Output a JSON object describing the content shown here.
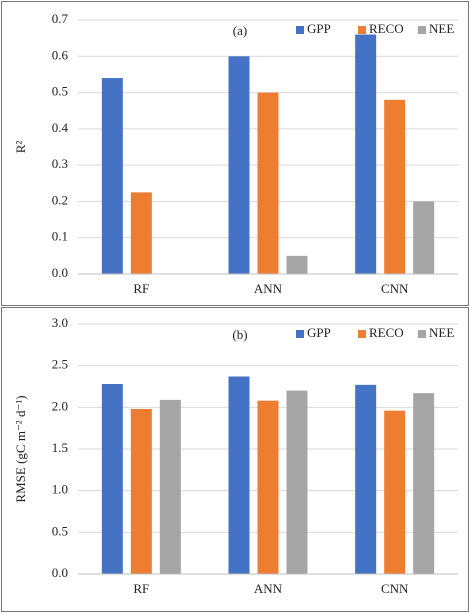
{
  "chart_data": [
    {
      "type": "bar",
      "title": "(a)",
      "y_label": "R²",
      "categories": [
        "RF",
        "ANN",
        "CNN"
      ],
      "series": [
        {
          "name": "GPP",
          "color": "#4472c4",
          "values": [
            0.54,
            0.6,
            0.66
          ]
        },
        {
          "name": "RECO",
          "color": "#ed7d31",
          "values": [
            0.225,
            0.5,
            0.48
          ]
        },
        {
          "name": "NEE",
          "color": "#a5a5a5",
          "values": [
            0,
            0.05,
            0.2
          ]
        }
      ],
      "ylim": [
        0,
        0.7
      ],
      "yticks": [
        {
          "value": 0,
          "label": "0.0"
        },
        0.1,
        0.2,
        0.3,
        0.4,
        0.5,
        0.6,
        0.7
      ],
      "grid": true,
      "legend": "upper right"
    },
    {
      "type": "bar",
      "title": "(b)",
      "y_label": "RMSE (gC m⁻² d⁻¹)",
      "categories": [
        "RF",
        "ANN",
        "CNN"
      ],
      "series": [
        {
          "name": "GPP",
          "color": "#4472c4",
          "values": [
            2.28,
            2.37,
            2.27
          ]
        },
        {
          "name": "RECO",
          "color": "#ed7d31",
          "values": [
            1.98,
            2.08,
            1.96
          ]
        },
        {
          "name": "NEE",
          "color": "#a5a5a5",
          "values": [
            2.09,
            2.2,
            2.17
          ]
        }
      ],
      "ylim": [
        0,
        3
      ],
      "yticks": [
        {
          "value": 0,
          "label": "0.0"
        },
        0.5,
        {
          "value": 1,
          "label": "1.0"
        },
        1.5,
        {
          "value": 2,
          "label": "2.0"
        },
        2.5,
        {
          "value": 3,
          "label": "3.0"
        }
      ],
      "grid": true,
      "legend": "upper right"
    }
  ]
}
